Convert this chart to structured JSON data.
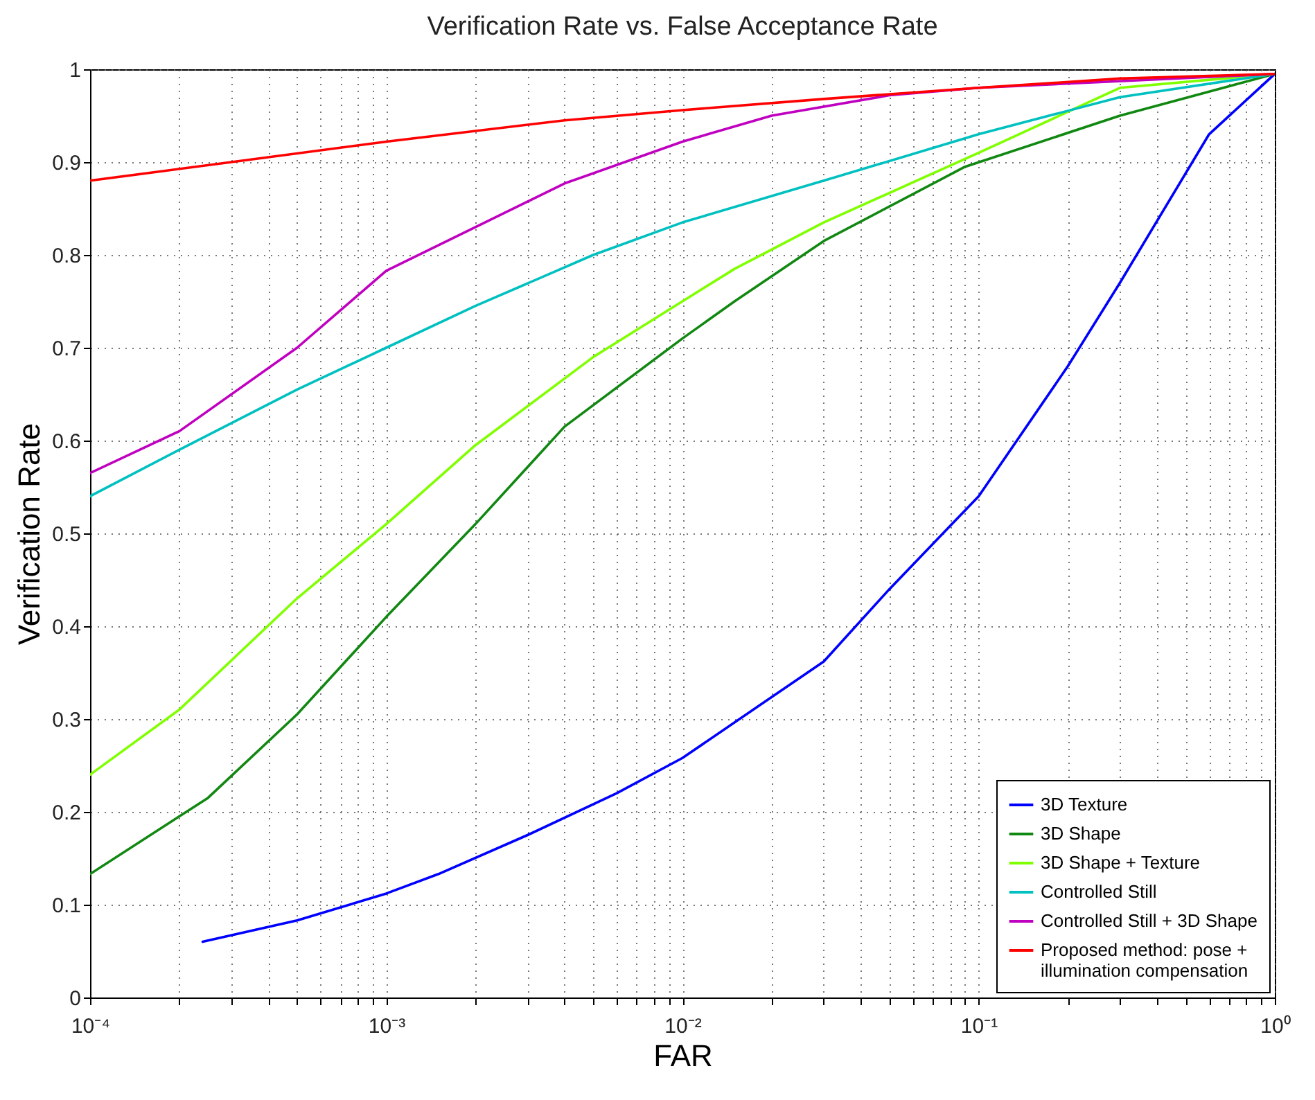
{
  "chart_data": {
    "type": "line",
    "title": "Verification Rate vs. False Acceptance Rate",
    "xlabel": "FAR",
    "ylabel": "Verification Rate",
    "log": "x",
    "grid": true,
    "legend": "bottom right",
    "line_style": "solid",
    "marker": "none",
    "xlim": [
      0.0001,
      1
    ],
    "ylim": [
      0,
      1
    ],
    "xticks": [
      {
        "value": 0.0001,
        "label": "10⁻⁴"
      },
      {
        "value": 0.0002,
        "label": null
      },
      {
        "value": 0.0003,
        "label": null
      },
      {
        "value": 0.0004,
        "label": null
      },
      {
        "value": 0.0005,
        "label": null
      },
      {
        "value": 0.0006,
        "label": null
      },
      {
        "value": 0.0007,
        "label": null
      },
      {
        "value": 0.0008,
        "label": null
      },
      {
        "value": 0.0009,
        "label": null
      },
      {
        "value": 0.001,
        "label": "10⁻³"
      },
      {
        "value": 0.002,
        "label": null
      },
      {
        "value": 0.003,
        "label": null
      },
      {
        "value": 0.004,
        "label": null
      },
      {
        "value": 0.005,
        "label": null
      },
      {
        "value": 0.006,
        "label": null
      },
      {
        "value": 0.007,
        "label": null
      },
      {
        "value": 0.008,
        "label": null
      },
      {
        "value": 0.009,
        "label": null
      },
      {
        "value": 0.01,
        "label": "10⁻²"
      },
      {
        "value": 0.02,
        "label": null
      },
      {
        "value": 0.03,
        "label": null
      },
      {
        "value": 0.04,
        "label": null
      },
      {
        "value": 0.05,
        "label": null
      },
      {
        "value": 0.06,
        "label": null
      },
      {
        "value": 0.07,
        "label": null
      },
      {
        "value": 0.08,
        "label": null
      },
      {
        "value": 0.09,
        "label": null
      },
      {
        "value": 0.1,
        "label": "10⁻¹"
      },
      {
        "value": 0.2,
        "label": null
      },
      {
        "value": 0.3,
        "label": null
      },
      {
        "value": 0.4,
        "label": null
      },
      {
        "value": 0.5,
        "label": null
      },
      {
        "value": 0.6,
        "label": null
      },
      {
        "value": 0.7,
        "label": null
      },
      {
        "value": 0.8,
        "label": null
      },
      {
        "value": 0.9,
        "label": null
      },
      {
        "value": 1,
        "label": "10⁰"
      }
    ],
    "yticks": [
      0,
      0.1,
      0.2,
      0.3,
      0.4,
      0.5,
      0.6,
      0.7,
      0.8,
      0.9,
      1
    ],
    "series": [
      {
        "name": "3D Texture",
        "color": "#0000ff",
        "x": [
          0.00024,
          0.0005,
          0.001,
          0.0015,
          0.003,
          0.006,
          0.01,
          0.03,
          0.05,
          0.1,
          0.2,
          0.3,
          0.6,
          1
        ],
        "values": [
          0.06,
          0.083,
          0.112,
          0.133,
          0.175,
          0.22,
          0.258,
          0.362,
          0.44,
          0.54,
          0.68,
          0.77,
          0.93,
          0.995
        ]
      },
      {
        "name": "3D Shape",
        "color": "#118811",
        "x": [
          0.0001,
          0.00025,
          0.0005,
          0.001,
          0.002,
          0.004,
          0.01,
          0.015,
          0.03,
          0.09,
          0.3,
          1
        ],
        "values": [
          0.133,
          0.215,
          0.305,
          0.41,
          0.51,
          0.615,
          0.71,
          0.75,
          0.815,
          0.895,
          0.95,
          0.995
        ]
      },
      {
        "name": "3D Shape + Texture",
        "color": "#80ff00",
        "x": [
          0.0001,
          0.0002,
          0.0005,
          0.001,
          0.002,
          0.005,
          0.01,
          0.015,
          0.03,
          0.1,
          0.3,
          1
        ],
        "values": [
          0.24,
          0.31,
          0.43,
          0.51,
          0.595,
          0.69,
          0.75,
          0.785,
          0.835,
          0.91,
          0.98,
          0.995
        ]
      },
      {
        "name": "Controlled Still",
        "color": "#00c0c0",
        "x": [
          0.0001,
          0.0002,
          0.0005,
          0.001,
          0.002,
          0.005,
          0.01,
          0.03,
          0.1,
          0.3,
          1
        ],
        "values": [
          0.54,
          0.59,
          0.655,
          0.7,
          0.745,
          0.8,
          0.835,
          0.88,
          0.93,
          0.97,
          0.995
        ]
      },
      {
        "name": "Controlled Still + 3D Shape",
        "color": "#c000c0",
        "x": [
          0.0001,
          0.0002,
          0.0005,
          0.001,
          0.002,
          0.004,
          0.01,
          0.02,
          0.05,
          0.1,
          1
        ],
        "values": [
          0.565,
          0.61,
          0.7,
          0.783,
          0.83,
          0.877,
          0.922,
          0.95,
          0.972,
          0.98,
          0.995
        ]
      },
      {
        "name": "Proposed method: pose +\nillumination compensation",
        "color": "#ff0000",
        "x": [
          0.0001,
          0.0003,
          0.001,
          0.004,
          0.01,
          0.03,
          0.1,
          0.3,
          1
        ],
        "values": [
          0.88,
          0.9,
          0.922,
          0.945,
          0.956,
          0.968,
          0.98,
          0.99,
          0.995
        ]
      }
    ]
  }
}
